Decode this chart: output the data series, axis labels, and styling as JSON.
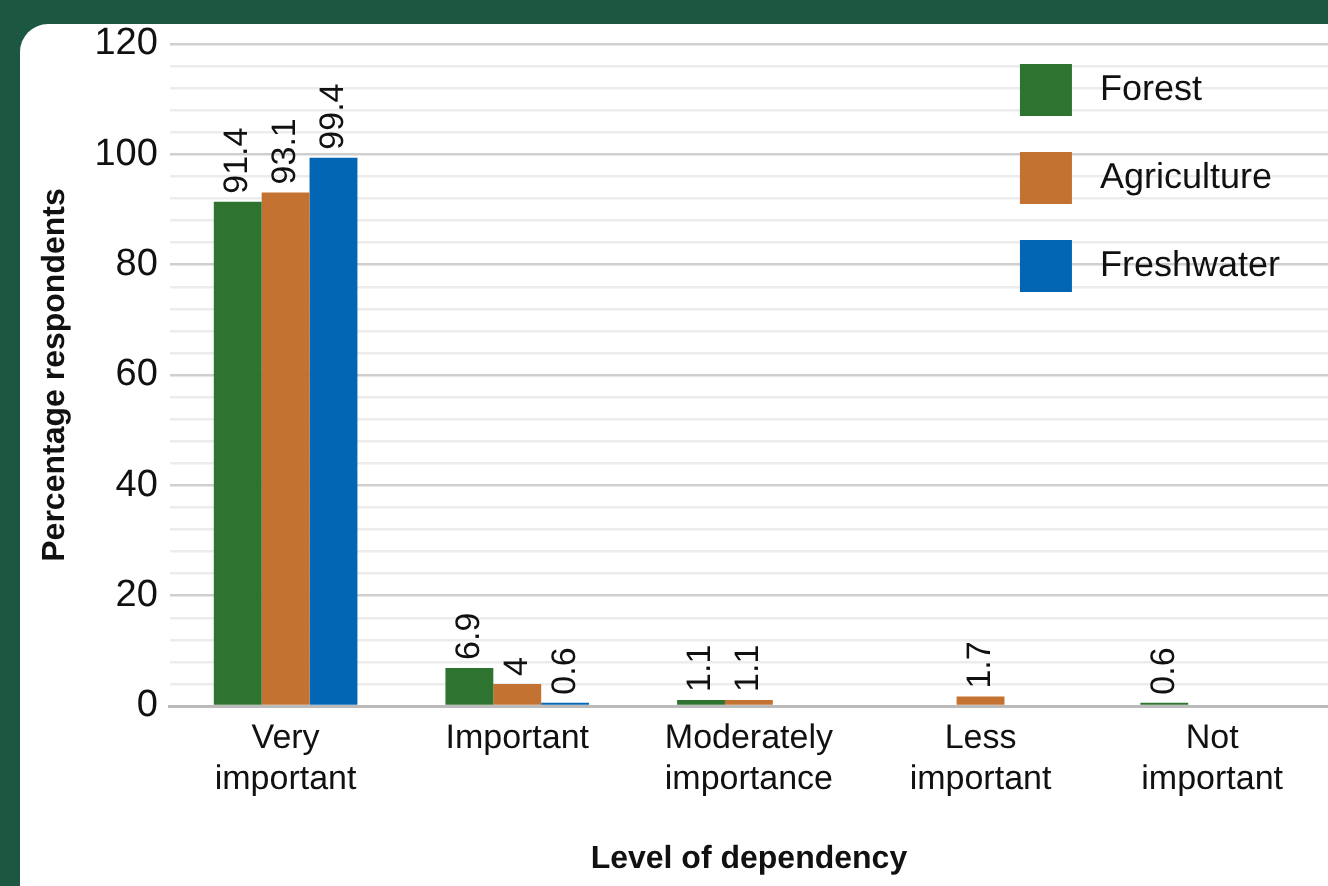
{
  "chart_data": {
    "type": "bar",
    "xlabel": "Level of dependency",
    "ylabel": "Percentage respondents",
    "categories": [
      "Very\nimportant",
      "Important",
      "Moderately\nimportance",
      "Less\nimportant",
      "Not\nimportant"
    ],
    "series": [
      {
        "name": "Forest",
        "color": "#2e7430",
        "values": [
          91.4,
          6.9,
          1.1,
          null,
          0.6
        ]
      },
      {
        "name": "Agriculture",
        "color": "#c37232",
        "values": [
          93.1,
          4,
          1.1,
          1.7,
          null
        ]
      },
      {
        "name": "Freshwater",
        "color": "#0366b5",
        "values": [
          99.4,
          0.6,
          null,
          null,
          null
        ]
      }
    ],
    "ylim": [
      0,
      120
    ],
    "yticks": [
      0,
      {
        "value": 4,
        "label": null
      },
      {
        "value": 8,
        "label": null
      },
      {
        "value": 12,
        "label": null
      },
      {
        "value": 16,
        "label": null
      },
      20,
      {
        "value": 24,
        "label": null
      },
      {
        "value": 28,
        "label": null
      },
      {
        "value": 32,
        "label": null
      },
      {
        "value": 36,
        "label": null
      },
      40,
      {
        "value": 44,
        "label": null
      },
      {
        "value": 48,
        "label": null
      },
      {
        "value": 52,
        "label": null
      },
      {
        "value": 56,
        "label": null
      },
      60,
      {
        "value": 64,
        "label": null
      },
      {
        "value": 68,
        "label": null
      },
      {
        "value": 72,
        "label": null
      },
      {
        "value": 76,
        "label": null
      },
      80,
      {
        "value": 84,
        "label": null
      },
      {
        "value": 88,
        "label": null
      },
      {
        "value": 92,
        "label": null
      },
      {
        "value": 96,
        "label": null
      },
      100,
      {
        "value": 104,
        "label": null
      },
      {
        "value": 108,
        "label": null
      },
      {
        "value": 112,
        "label": null
      },
      {
        "value": 116,
        "label": null
      },
      120
    ],
    "grid": "y",
    "legend": "top right",
    "data_labels": true
  }
}
